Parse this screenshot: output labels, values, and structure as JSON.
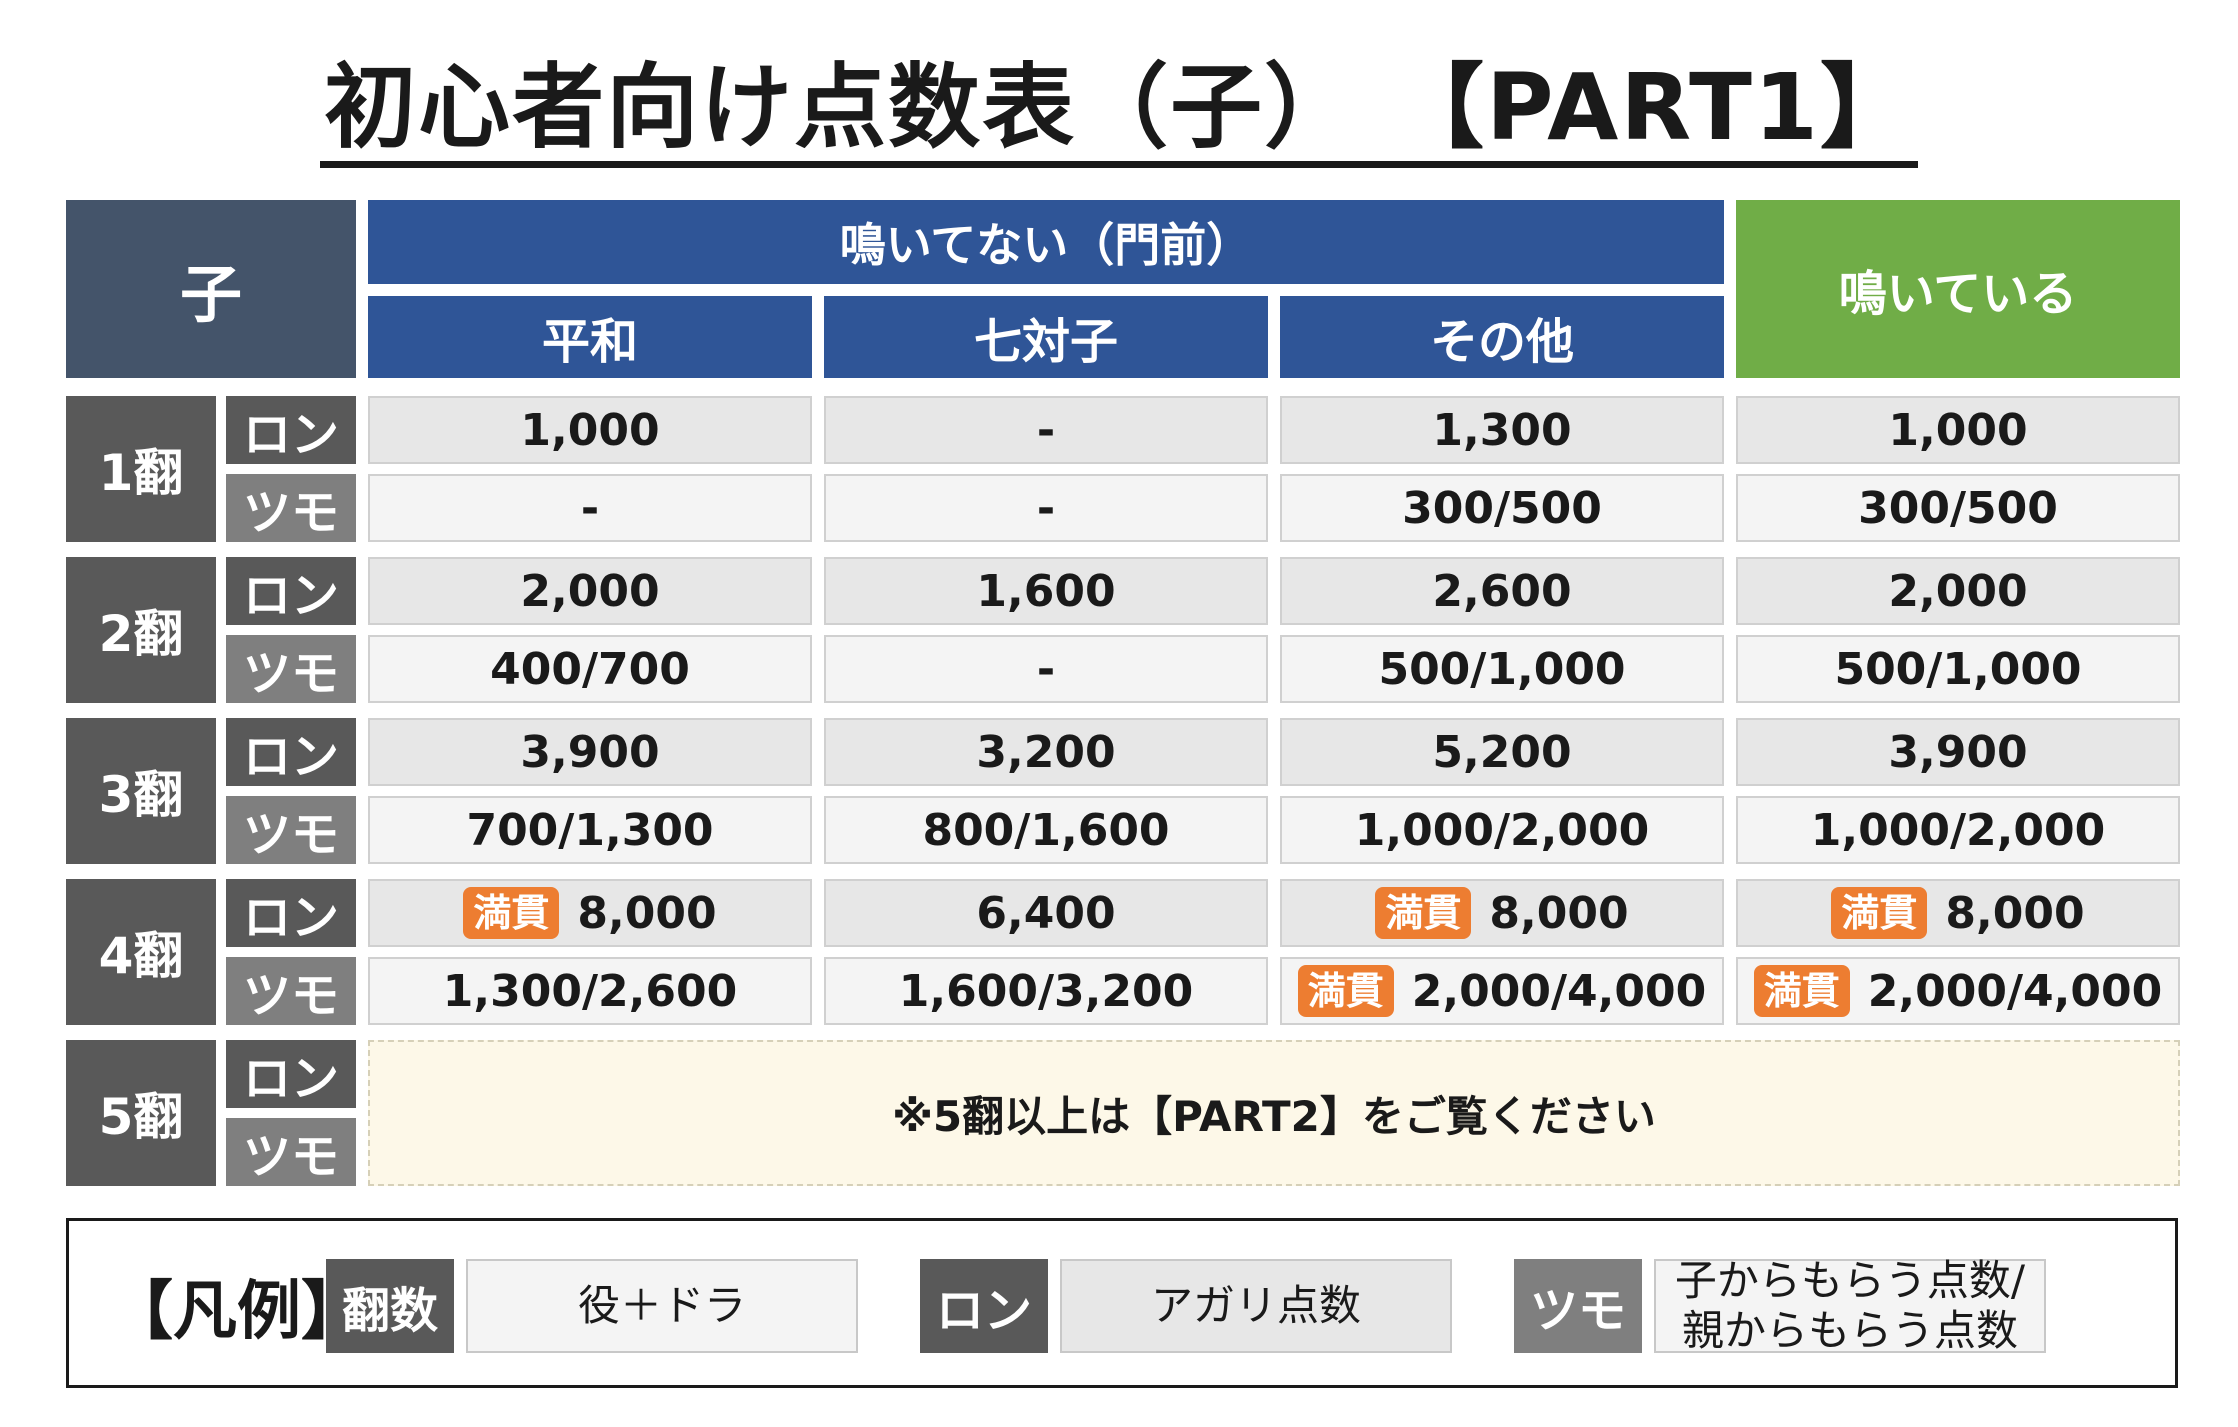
{
  "title": "初心者向け点数表（子） 【PART1】",
  "header": {
    "corner": "子",
    "closed_group": "鳴いてない（門前）",
    "columns": [
      "平和",
      "七対子",
      "その他"
    ],
    "open_group": "鳴いている"
  },
  "labels": {
    "ron": "ロン",
    "tsumo": "ツモ",
    "mangan": "満貫"
  },
  "rows": [
    {
      "han": "1翻",
      "ron": [
        {
          "v": "1,000"
        },
        {
          "v": "-"
        },
        {
          "v": "1,300"
        },
        {
          "v": "1,000"
        }
      ],
      "tsumo": [
        {
          "v": "-"
        },
        {
          "v": "-"
        },
        {
          "v": "300/500"
        },
        {
          "v": "300/500"
        }
      ]
    },
    {
      "han": "2翻",
      "ron": [
        {
          "v": "2,000"
        },
        {
          "v": "1,600"
        },
        {
          "v": "2,600"
        },
        {
          "v": "2,000"
        }
      ],
      "tsumo": [
        {
          "v": "400/700"
        },
        {
          "v": "-"
        },
        {
          "v": "500/1,000"
        },
        {
          "v": "500/1,000"
        }
      ]
    },
    {
      "han": "3翻",
      "ron": [
        {
          "v": "3,900"
        },
        {
          "v": "3,200"
        },
        {
          "v": "5,200"
        },
        {
          "v": "3,900"
        }
      ],
      "tsumo": [
        {
          "v": "700/1,300"
        },
        {
          "v": "800/1,600"
        },
        {
          "v": "1,000/2,000"
        },
        {
          "v": "1,000/2,000"
        }
      ]
    },
    {
      "han": "4翻",
      "ron": [
        {
          "v": "8,000",
          "badge": true
        },
        {
          "v": "6,400"
        },
        {
          "v": "8,000",
          "badge": true
        },
        {
          "v": "8,000",
          "badge": true
        }
      ],
      "tsumo": [
        {
          "v": "1,300/2,600"
        },
        {
          "v": "1,600/3,200"
        },
        {
          "v": "2,000/4,000",
          "badge": true
        },
        {
          "v": "2,000/4,000",
          "badge": true
        }
      ]
    },
    {
      "han": "5翻",
      "note": "※5翻以上は【PART2】をご覧ください"
    }
  ],
  "legend": {
    "title": "【凡例】",
    "items": [
      {
        "key": "翻数",
        "value": "役＋ドラ",
        "key_color": "#595959"
      },
      {
        "key": "ロン",
        "value": "アガリ点数",
        "key_color": "#595959"
      },
      {
        "key": "ツモ",
        "value": "子からもらう点数/\n親からもらう点数",
        "key_color": "#7f7f7f"
      }
    ]
  }
}
